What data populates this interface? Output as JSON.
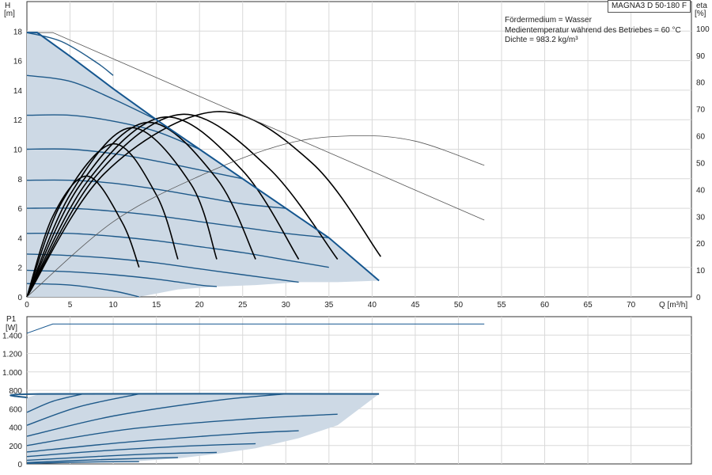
{
  "model_label": "MAGNA3 D 50-180 F",
  "notes": [
    "Fördermedium = Wasser",
    "Medientemperatur während des Betriebes = 60 °C",
    "Dichte = 983.2 kg/m³"
  ],
  "colors": {
    "curve": "#1f5a8a",
    "envelope_edge": "#15568f",
    "area_fill": "#cdd9e5",
    "efficiency": "#000000",
    "grid": "#d9d9d9",
    "thin": "#555555"
  },
  "chart_data": [
    {
      "type": "line",
      "xlabel": "Q [m³/h]",
      "ylabel": "H",
      "ylabel_unit": "[m]",
      "y2label": "eta",
      "y2label_unit": "[%]",
      "xlim": [
        0,
        77
      ],
      "ylim": [
        0,
        20
      ],
      "y2lim": [
        0,
        110
      ],
      "xticks": [
        0,
        5,
        10,
        15,
        20,
        25,
        30,
        35,
        40,
        45,
        50,
        55,
        60,
        65,
        70
      ],
      "yticks": [
        0,
        2,
        4,
        6,
        8,
        10,
        12,
        14,
        16,
        18
      ],
      "y2ticks": [
        0,
        10,
        20,
        30,
        40,
        50,
        60,
        70,
        80,
        90,
        100
      ],
      "grid": true,
      "operating_area": {
        "upper_boundary": [
          [
            0,
            17.9
          ],
          [
            1.2,
            17.9
          ],
          [
            5,
            16.3
          ],
          [
            10,
            14.1
          ],
          [
            15,
            12.0
          ],
          [
            20,
            10.0
          ],
          [
            25,
            8.0
          ],
          [
            30,
            6.0
          ],
          [
            35,
            4.0
          ],
          [
            40.8,
            1.1
          ]
        ],
        "lower_boundary": [
          [
            0,
            0
          ],
          [
            13,
            0
          ],
          [
            17.5,
            0.5
          ],
          [
            22,
            0.7
          ],
          [
            26.5,
            0.8
          ],
          [
            31.5,
            1.0
          ],
          [
            36,
            1.0
          ],
          [
            40.8,
            1.1
          ]
        ]
      },
      "series": [
        {
          "kind": "pump_curve",
          "x": [
            0,
            4,
            8,
            10
          ],
          "y": [
            17.9,
            17.3,
            15.9,
            15.0
          ]
        },
        {
          "kind": "pump_curve",
          "x": [
            0,
            5,
            10,
            15
          ],
          "y": [
            15.0,
            14.6,
            13.4,
            12.0
          ]
        },
        {
          "kind": "pump_curve",
          "x": [
            0,
            5,
            10,
            15,
            20
          ],
          "y": [
            12.3,
            12.3,
            11.9,
            11.2,
            10.0
          ]
        },
        {
          "kind": "pump_curve",
          "x": [
            0,
            5,
            10,
            15,
            20,
            25
          ],
          "y": [
            10.0,
            10.0,
            9.7,
            9.2,
            8.6,
            8.0
          ]
        },
        {
          "kind": "pump_curve",
          "x": [
            0,
            5,
            10,
            15,
            20,
            25,
            30
          ],
          "y": [
            7.9,
            7.9,
            7.7,
            7.3,
            6.8,
            6.3,
            6.0
          ]
        },
        {
          "kind": "pump_curve",
          "x": [
            0,
            5,
            10,
            15,
            20,
            25,
            30,
            35
          ],
          "y": [
            6.0,
            6.0,
            5.8,
            5.5,
            5.1,
            4.7,
            4.3,
            4.0
          ]
        },
        {
          "kind": "pump_curve",
          "x": [
            0,
            5,
            10,
            15,
            20,
            25,
            30,
            35
          ],
          "y": [
            4.3,
            4.3,
            4.1,
            3.8,
            3.4,
            3.0,
            2.5,
            2.0
          ]
        },
        {
          "kind": "pump_curve",
          "x": [
            0,
            5,
            10,
            15,
            20,
            25,
            31.5
          ],
          "y": [
            2.9,
            2.8,
            2.6,
            2.3,
            1.9,
            1.5,
            1.0
          ]
        },
        {
          "kind": "pump_curve",
          "x": [
            0,
            5,
            10,
            15,
            20,
            22
          ],
          "y": [
            1.8,
            1.7,
            1.5,
            1.2,
            0.8,
            0.7
          ]
        },
        {
          "kind": "pump_curve",
          "x": [
            0,
            5,
            10,
            13
          ],
          "y": [
            0.9,
            0.8,
            0.4,
            0.0
          ]
        },
        {
          "kind": "efficiency_curve",
          "x": [
            0,
            3,
            7,
            11,
            13
          ],
          "y": [
            0,
            30,
            45,
            28,
            11
          ]
        },
        {
          "kind": "efficiency_curve",
          "x": [
            0,
            4,
            10,
            15,
            17.5
          ],
          "y": [
            0,
            35,
            57,
            38,
            14
          ]
        },
        {
          "kind": "efficiency_curve",
          "x": [
            0,
            5,
            12,
            19,
            22
          ],
          "y": [
            0,
            38,
            63,
            42,
            14
          ]
        },
        {
          "kind": "efficiency_curve",
          "x": [
            0,
            6,
            14,
            22,
            26.5
          ],
          "y": [
            0,
            41,
            65,
            44,
            14
          ]
        },
        {
          "kind": "efficiency_curve",
          "x": [
            0,
            7,
            16,
            25,
            31.5
          ],
          "y": [
            0,
            43,
            67,
            47,
            14
          ]
        },
        {
          "kind": "efficiency_curve",
          "x": [
            0,
            8,
            18,
            28,
            36
          ],
          "y": [
            0,
            45,
            68,
            48,
            14
          ]
        },
        {
          "kind": "efficiency_curve",
          "x": [
            0,
            9,
            22,
            33,
            41
          ],
          "y": [
            0,
            46,
            69,
            50,
            15
          ]
        },
        {
          "kind": "system_line",
          "x": [
            0,
            3,
            53
          ],
          "y": [
            17.9,
            17.9,
            5.2
          ]
        },
        {
          "kind": "hydraulic_eff",
          "x": [
            0,
            10,
            20,
            30,
            38,
            45,
            53
          ],
          "y": [
            0,
            28,
            45,
            57,
            60,
            58,
            49
          ]
        }
      ]
    },
    {
      "type": "line",
      "xlabel": "",
      "ylabel": "P1",
      "ylabel_unit": "[W]",
      "xlim": [
        0,
        77
      ],
      "ylim": [
        0,
        1600
      ],
      "yticks": [
        0,
        200,
        400,
        600,
        800,
        1000,
        1200,
        1400
      ],
      "ytick_labels": [
        "0",
        "200",
        "400",
        "600",
        "800",
        "1.000",
        "1.200",
        "1.400"
      ],
      "grid": true,
      "operating_area": {
        "upper_boundary": [
          [
            0,
            720
          ],
          [
            1.5,
            760
          ],
          [
            40.8,
            760
          ]
        ],
        "lower_boundary": [
          [
            0,
            0
          ],
          [
            13,
            30
          ],
          [
            17.5,
            60
          ],
          [
            22,
            110
          ],
          [
            26.5,
            170
          ],
          [
            31.5,
            280
          ],
          [
            36,
            420
          ],
          [
            40.8,
            760
          ]
        ]
      },
      "series": [
        {
          "kind": "power_curve",
          "x": [
            0,
            1.5,
            40.8
          ],
          "y": [
            720,
            760,
            760
          ]
        },
        {
          "kind": "power_curve",
          "x": [
            0,
            3,
            6.5
          ],
          "y": [
            560,
            680,
            760
          ]
        },
        {
          "kind": "power_curve",
          "x": [
            0,
            6,
            13
          ],
          "y": [
            420,
            620,
            760
          ]
        },
        {
          "kind": "power_curve",
          "x": [
            0,
            10,
            22,
            30
          ],
          "y": [
            300,
            520,
            690,
            760
          ]
        },
        {
          "kind": "power_curve",
          "x": [
            0,
            12,
            26,
            36
          ],
          "y": [
            200,
            380,
            490,
            540
          ]
        },
        {
          "kind": "power_curve",
          "x": [
            0,
            12,
            25,
            31.5
          ],
          "y": [
            130,
            240,
            330,
            360
          ]
        },
        {
          "kind": "power_curve",
          "x": [
            0,
            10,
            20,
            26.5
          ],
          "y": [
            80,
            150,
            200,
            220
          ]
        },
        {
          "kind": "power_curve",
          "x": [
            0,
            8,
            15,
            22
          ],
          "y": [
            40,
            80,
            110,
            125
          ]
        },
        {
          "kind": "power_curve",
          "x": [
            0,
            8,
            14,
            17.5
          ],
          "y": [
            15,
            45,
            62,
            70
          ]
        },
        {
          "kind": "power_curve",
          "x": [
            0,
            7,
            13
          ],
          "y": [
            5,
            20,
            25
          ]
        },
        {
          "kind": "max_power_line",
          "x": [
            0,
            3,
            53
          ],
          "y": [
            1420,
            1520,
            1520
          ]
        }
      ]
    }
  ]
}
